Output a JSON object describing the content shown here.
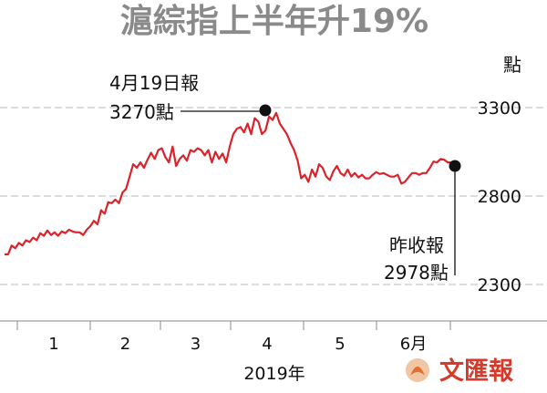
{
  "chart_data": {
    "type": "line",
    "title": "滬綜指上半年升19%",
    "ylabel": "點",
    "xlabel": "2019年",
    "ylim": [
      2300,
      3300
    ],
    "y_ticks": [
      "3300",
      "2800",
      "2300"
    ],
    "x_ticks": [
      "1",
      "2",
      "3",
      "4",
      "5",
      "6月"
    ],
    "grid": true,
    "line_color": "#d9242b",
    "series": [
      {
        "values": [
          2470,
          2470,
          2520,
          2505,
          2535,
          2520,
          2550,
          2540,
          2565,
          2550,
          2590,
          2575,
          2605,
          2580,
          2595,
          2575,
          2600,
          2590,
          2610,
          2600,
          2595,
          2595,
          2580,
          2610,
          2630,
          2660,
          2640,
          2720,
          2700,
          2765,
          2760,
          2780,
          2760,
          2820,
          2840,
          2910,
          2980,
          2960,
          2990,
          2960,
          3005,
          3045,
          3010,
          3060,
          3070,
          3020,
          2990,
          3080,
          2970,
          3010,
          3030,
          3000,
          3060,
          3050,
          3070,
          3060,
          3030,
          3060,
          2990,
          3050,
          3010,
          3040,
          2990,
          3080,
          3150,
          3180,
          3190,
          3160,
          3210,
          3150,
          3240,
          3220,
          3150,
          3170,
          3250,
          3230,
          3270,
          3210,
          3180,
          3150,
          3100,
          3060,
          3000,
          2900,
          2920,
          2880,
          2950,
          2910,
          2980,
          2960,
          2910,
          2890,
          2940,
          2970,
          2930,
          2915,
          2950,
          2910,
          2930,
          2905,
          2920,
          2900,
          2900,
          2920,
          2935,
          2925,
          2930,
          2920,
          2910,
          2910,
          2920,
          2870,
          2880,
          2905,
          2930,
          2930,
          2920,
          2930,
          2930,
          2960,
          2995,
          2990,
          3010,
          3005,
          2990,
          2990,
          2978
        ]
      }
    ],
    "annotations": [
      {
        "lines": [
          "4月19日報",
          "3270點"
        ]
      },
      {
        "lines": [
          "昨收報",
          "2978點"
        ]
      }
    ]
  },
  "watermark": "文匯報"
}
